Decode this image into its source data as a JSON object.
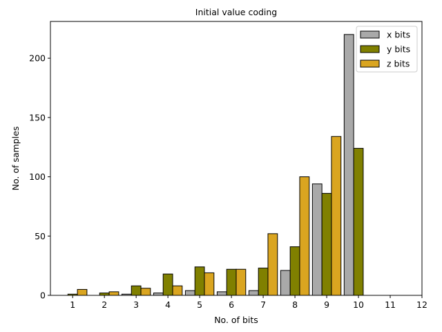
{
  "chart_data": {
    "type": "bar",
    "title": "Initial value coding",
    "xlabel": "No. of bits",
    "ylabel": "No. of samples",
    "x": [
      1,
      2,
      3,
      4,
      5,
      6,
      7,
      8,
      9,
      10
    ],
    "xticks": [
      1,
      2,
      3,
      4,
      5,
      6,
      7,
      8,
      9,
      10,
      11,
      12
    ],
    "yticks": [
      0,
      50,
      100,
      150,
      200
    ],
    "xlim": [
      0.3,
      12
    ],
    "ylim": [
      0,
      231
    ],
    "legend_position": "top-right",
    "series": [
      {
        "name": "x bits",
        "color": "#a9a9a9",
        "values": [
          0,
          0,
          1,
          2,
          4,
          3,
          4,
          21,
          94,
          220
        ]
      },
      {
        "name": "y bits",
        "color": "#808000",
        "values": [
          1,
          2,
          8,
          18,
          24,
          22,
          23,
          41,
          86,
          124
        ]
      },
      {
        "name": "z bits",
        "color": "#daa520",
        "values": [
          5,
          3,
          6,
          8,
          19,
          22,
          52,
          100,
          134,
          0
        ]
      }
    ]
  }
}
